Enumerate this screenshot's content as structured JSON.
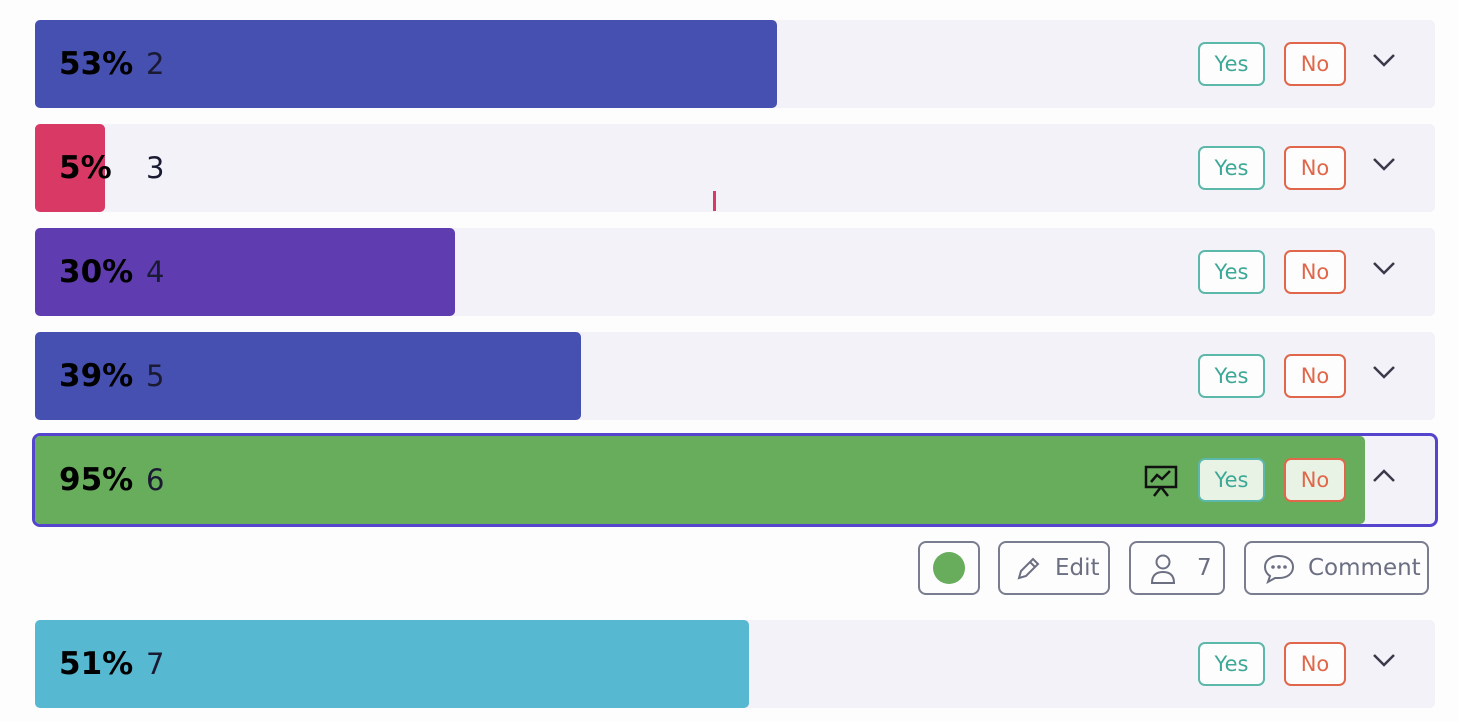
{
  "buttons": {
    "yes": "Yes",
    "no": "No"
  },
  "rows": [
    {
      "percent": 53,
      "percent_label": "53%",
      "name": "2",
      "color": "#4550b0"
    },
    {
      "percent": 5,
      "percent_label": "5%",
      "name": "3",
      "color": "#d83a65"
    },
    {
      "percent": 30,
      "percent_label": "30%",
      "name": "4",
      "color": "#5f3db0"
    },
    {
      "percent": 39,
      "percent_label": "39%",
      "name": "5",
      "color": "#4550b0"
    },
    {
      "percent": 95,
      "percent_label": "95%",
      "name": "6",
      "color": "#67ad5b",
      "selected": true,
      "actions": {
        "status_color": "#67ad5b",
        "edit": "Edit",
        "participants": "7",
        "comment": "Comment"
      }
    },
    {
      "percent": 51,
      "percent_label": "51%",
      "name": "7",
      "color": "#57b8d1"
    }
  ]
}
